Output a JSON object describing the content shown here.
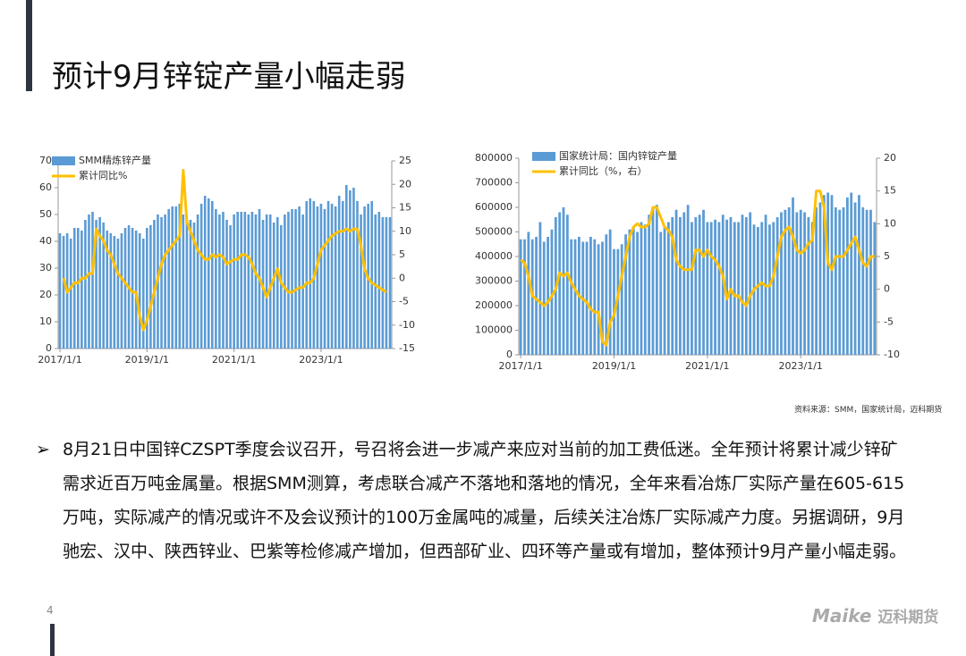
{
  "header": {
    "title": "预计9月锌锭产量小幅走弱"
  },
  "chart_data": [
    {
      "type": "combo",
      "categories": [
        "2017/1/1",
        null,
        null,
        null,
        null,
        null,
        null,
        null,
        null,
        null,
        null,
        null,
        null,
        null,
        null,
        null,
        null,
        null,
        null,
        null,
        null,
        null,
        null,
        null,
        "2019/1/1",
        null,
        null,
        null,
        null,
        null,
        null,
        null,
        null,
        null,
        null,
        null,
        null,
        null,
        null,
        null,
        null,
        null,
        null,
        null,
        null,
        null,
        null,
        null,
        "2021/1/1",
        null,
        null,
        null,
        null,
        null,
        null,
        null,
        null,
        null,
        null,
        null,
        null,
        null,
        null,
        null,
        null,
        null,
        null,
        null,
        null,
        null,
        null,
        null,
        "2023/1/1",
        null,
        null,
        null,
        null,
        null,
        null,
        null,
        null,
        null,
        null,
        null,
        null,
        null,
        null,
        null,
        null,
        null,
        null,
        null
      ],
      "series": [
        {
          "name": "SMM精炼锌产量",
          "type": "bar",
          "color": "#5b9bd5",
          "values": [
            43,
            42,
            43,
            41,
            45,
            45,
            44,
            48,
            50,
            51,
            48,
            49,
            47,
            44,
            43,
            42,
            41,
            43,
            45,
            46,
            45,
            44,
            43,
            41,
            45,
            46,
            48,
            50,
            49,
            50,
            52,
            53,
            53,
            54,
            50,
            47,
            48,
            47,
            50,
            54,
            57,
            56,
            55,
            52,
            50,
            51,
            48,
            46,
            50,
            51,
            51,
            51,
            50,
            51,
            50,
            52,
            48,
            50,
            50,
            47,
            49,
            46,
            50,
            51,
            52,
            52,
            53,
            50,
            55,
            56,
            55,
            53,
            54,
            52,
            55,
            54,
            53,
            57,
            55,
            61,
            59,
            60,
            55,
            50,
            53,
            54,
            55,
            50,
            51,
            49,
            49,
            49
          ]
        },
        {
          "name": "累计同比%",
          "type": "line",
          "axis": "y2",
          "color": "#ffc000",
          "values": [
            null,
            0,
            -3,
            -2,
            -1,
            -1,
            0,
            0,
            1,
            1,
            10.5,
            9,
            8,
            6,
            5,
            3,
            1,
            0,
            -1,
            -2,
            -3,
            -3,
            -8,
            -11,
            -9,
            -6,
            -3,
            0,
            3,
            5,
            6,
            7,
            8,
            9,
            23,
            12,
            10,
            8,
            6,
            5,
            4,
            4,
            5,
            4.5,
            5,
            4.5,
            3,
            3.5,
            4,
            4,
            5,
            5,
            4.5,
            3,
            1,
            0,
            -2,
            -4,
            -2,
            0,
            2,
            -1,
            -2,
            -3,
            -3,
            -2.5,
            -2,
            -2,
            -1,
            -1,
            0,
            3,
            6,
            7,
            8,
            9,
            9.5,
            10,
            10,
            10.5,
            10,
            10.5,
            10.5,
            7,
            2,
            0,
            -1,
            -1.5,
            -2,
            -2.5,
            -3,
            null
          ]
        }
      ],
      "ylim": [
        0,
        70
      ],
      "yticks": [
        0,
        10,
        20,
        30,
        40,
        50,
        60,
        70
      ],
      "y2lim": [
        -15,
        25
      ],
      "y2ticks": [
        -15,
        -10,
        -5,
        0,
        5,
        10,
        15,
        20,
        25
      ]
    },
    {
      "type": "combo",
      "categories": [
        "2017/1/1",
        null,
        null,
        null,
        null,
        null,
        null,
        null,
        null,
        null,
        null,
        null,
        null,
        null,
        null,
        null,
        null,
        null,
        null,
        null,
        null,
        null,
        null,
        null,
        "2019/1/1",
        null,
        null,
        null,
        null,
        null,
        null,
        null,
        null,
        null,
        null,
        null,
        null,
        null,
        null,
        null,
        null,
        null,
        null,
        null,
        null,
        null,
        null,
        null,
        "2021/1/1",
        null,
        null,
        null,
        null,
        null,
        null,
        null,
        null,
        null,
        null,
        null,
        null,
        null,
        null,
        null,
        null,
        null,
        null,
        null,
        null,
        null,
        null,
        null,
        "2023/1/1",
        null,
        null,
        null,
        null,
        null,
        null,
        null,
        null,
        null,
        null,
        null,
        null,
        null,
        null,
        null,
        null,
        null,
        null,
        null
      ],
      "series": [
        {
          "name": "国家统计局：国内锌锭产量",
          "type": "bar",
          "color": "#5b9bd5",
          "values": [
            470000,
            470000,
            500000,
            470000,
            480000,
            540000,
            460000,
            480000,
            510000,
            560000,
            580000,
            600000,
            570000,
            470000,
            470000,
            480000,
            460000,
            460000,
            480000,
            470000,
            450000,
            460000,
            490000,
            510000,
            430000,
            430000,
            450000,
            490000,
            510000,
            520000,
            500000,
            540000,
            530000,
            570000,
            600000,
            610000,
            500000,
            520000,
            540000,
            560000,
            590000,
            560000,
            580000,
            610000,
            540000,
            560000,
            570000,
            590000,
            540000,
            540000,
            550000,
            540000,
            570000,
            550000,
            560000,
            540000,
            540000,
            570000,
            560000,
            580000,
            530000,
            520000,
            540000,
            570000,
            530000,
            540000,
            560000,
            580000,
            590000,
            600000,
            640000,
            580000,
            590000,
            580000,
            560000,
            540000,
            600000,
            620000,
            650000,
            660000,
            650000,
            600000,
            590000,
            600000,
            640000,
            660000,
            620000,
            650000,
            600000,
            590000,
            590000,
            540000
          ]
        },
        {
          "name": "累计同比（%，右）",
          "type": "line",
          "axis": "y2",
          "color": "#ffc000",
          "values": [
            4.5,
            4,
            2,
            -1,
            -1.5,
            -2,
            -2.5,
            -2,
            -1,
            0,
            2.5,
            2,
            2.5,
            1,
            0,
            -1,
            -1.5,
            -2,
            -3,
            -3.5,
            -3.5,
            -8,
            -8.5,
            -5,
            -4,
            -1,
            2,
            5,
            8,
            9.5,
            10,
            9.5,
            9.5,
            10,
            12.5,
            12.5,
            11,
            9.5,
            9,
            8,
            4.5,
            3.5,
            3,
            3,
            3,
            6,
            6,
            5,
            6,
            5,
            4.5,
            3.5,
            2,
            -1.5,
            0,
            -1,
            -1,
            -2,
            -2.5,
            -1,
            0,
            0.5,
            1,
            0.5,
            0.5,
            2,
            5,
            8,
            9,
            9.5,
            8,
            6,
            5.5,
            6,
            7,
            7.5,
            15,
            15,
            12.5,
            4,
            3,
            5,
            5,
            5,
            6,
            7,
            8,
            6,
            4,
            3.5,
            5,
            5
          ]
        }
      ],
      "ylim": [
        0,
        800000
      ],
      "yticks": [
        0,
        100000,
        200000,
        300000,
        400000,
        500000,
        600000,
        700000,
        800000
      ],
      "y2lim": [
        -10,
        20
      ],
      "y2ticks": [
        -10,
        -5,
        0,
        5,
        10,
        15,
        20
      ]
    }
  ],
  "source": "资料来源：SMM，国家统计局，迈科期货",
  "body": {
    "bullet": "➢",
    "text": "8月21日中国锌CZSPT季度会议召开，号召将会进一步减产来应对当前的加工费低迷。全年预计将累计减少锌矿需求近百万吨金属量。根据SMM测算，考虑联合减产不落地和落地的情况，全年来看冶炼厂实际产量在605-615万吨，实际减产的情况或许不及会议预计的100万金属吨的减量，后续关注冶炼厂实际减产力度。另据调研，9月驰宏、汉中、陕西锌业、巴紫等检修减产增加，但西部矿业、四环等产量或有增加，整体预计9月产量小幅走弱。"
  },
  "page_number": "4",
  "logo": {
    "brand": "Maike",
    "name": "迈科期货"
  }
}
